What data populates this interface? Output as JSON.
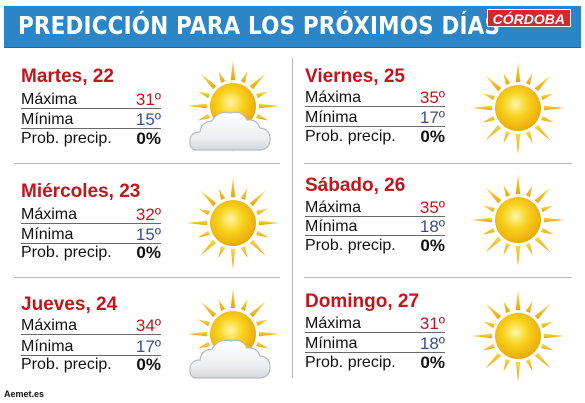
{
  "header": {
    "title": "PREDICCIÓN PARA LOS PRÓXIMOS DÍAS",
    "brand": "CÓRDOBA"
  },
  "labels": {
    "max": "Máxima",
    "min": "Mínima",
    "prob": "Prob. precip."
  },
  "days": [
    {
      "name": "Martes, 22",
      "max": "31º",
      "min": "15º",
      "prob": "0%",
      "icon": "sun-cloud-icon"
    },
    {
      "name": "Miércoles, 23",
      "max": "32º",
      "min": "15º",
      "prob": "0%",
      "icon": "sun-icon"
    },
    {
      "name": "Jueves, 24",
      "max": "34º",
      "min": "17º",
      "prob": "0%",
      "icon": "sun-cloud-icon"
    },
    {
      "name": "Viernes, 25",
      "max": "35º",
      "min": "17º",
      "prob": "0%",
      "icon": "sun-icon"
    },
    {
      "name": "Sábado, 26",
      "max": "35º",
      "min": "18º",
      "prob": "0%",
      "icon": "sun-icon"
    },
    {
      "name": "Domingo, 27",
      "max": "31º",
      "min": "18º",
      "prob": "0%",
      "icon": "sun-icon"
    }
  ],
  "colors": {
    "header_bg": "#2a86c6",
    "day_title": "#c4141c",
    "max_value": "#c4141c",
    "min_value": "#3b4d92",
    "brand_bg": "#d8262d",
    "sun": "#f6c512"
  },
  "footer": "Aemet.es"
}
